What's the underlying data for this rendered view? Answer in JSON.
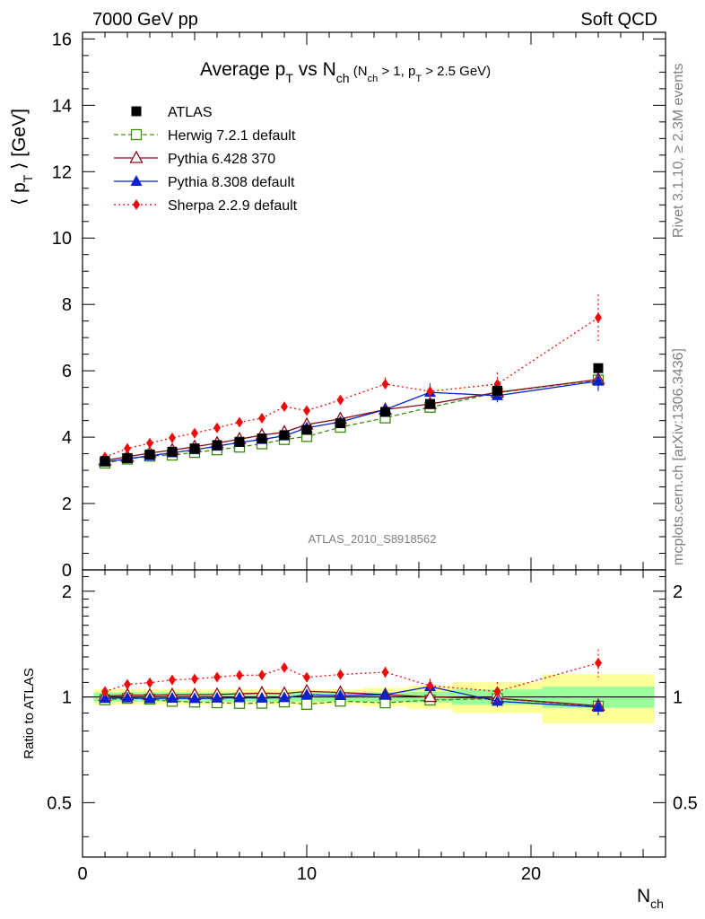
{
  "header": {
    "left": "7000 GeV pp",
    "right": "Soft QCD"
  },
  "side_text": {
    "top": "Rivet 3.1.10, ≥ 2.3M events",
    "bottom": "mcplots.cern.ch [arXiv:1306.3436]"
  },
  "watermark": "ATLAS_2010_S8918562",
  "chart_data": {
    "type": "line",
    "title": {
      "main": "Average p",
      "main_sub": "T",
      "vs": " vs N",
      "vs_sub": "ch",
      "cond_open": " (N",
      "cond_sub1": "ch",
      "cond_mid": " > 1, p",
      "cond_sub2": "T",
      "cond_close": " > 2.5 GeV)"
    },
    "ylabel": {
      "open": "⟨ p",
      "sub": "T",
      "close": " ⟩  [GeV]"
    },
    "ratio_ylabel": "Ratio to ATLAS",
    "xlabel": {
      "main": "N",
      "sub": "ch"
    },
    "xlim": [
      0,
      26
    ],
    "ylim": [
      0,
      16.2
    ],
    "ratio_ylim": [
      0.35,
      2.3
    ],
    "x_ticks": [
      0,
      10,
      20
    ],
    "y_ticks": [
      0,
      2,
      4,
      6,
      8,
      10,
      12,
      14,
      16
    ],
    "ratio_ticks": [
      0.5,
      1,
      2
    ],
    "legend_position": "top-left",
    "x": [
      1,
      2,
      3,
      4,
      5,
      6,
      7,
      8,
      9,
      10,
      11.5,
      13.5,
      15.5,
      18.5,
      23
    ],
    "x_edges": [
      0.5,
      1.5,
      2.5,
      3.5,
      4.5,
      5.5,
      6.5,
      7.5,
      8.5,
      9.5,
      10.5,
      12.5,
      14.5,
      16.5,
      20.5,
      25.5
    ],
    "band_inner": [
      0.03,
      0.03,
      0.03,
      0.03,
      0.03,
      0.03,
      0.03,
      0.03,
      0.03,
      0.03,
      0.03,
      0.03,
      0.035,
      0.05,
      0.07
    ],
    "band_outer": [
      0.05,
      0.05,
      0.05,
      0.05,
      0.05,
      0.05,
      0.05,
      0.05,
      0.05,
      0.05,
      0.05,
      0.06,
      0.075,
      0.1,
      0.16
    ],
    "data": {
      "name": "ATLAS",
      "values": [
        3.28,
        3.37,
        3.48,
        3.56,
        3.66,
        3.76,
        3.86,
        3.96,
        4.06,
        4.22,
        4.42,
        4.76,
        5.0,
        5.4,
        6.08
      ]
    },
    "series": [
      {
        "name": "Herwig 7.2.1 default",
        "color": "#3a8c0a",
        "dash": "5,3",
        "marker": "open-square",
        "values": [
          3.22,
          3.34,
          3.43,
          3.46,
          3.54,
          3.62,
          3.7,
          3.8,
          3.93,
          4.02,
          4.3,
          4.58,
          4.9,
          5.34,
          5.72
        ],
        "errors": [
          0.03,
          0.03,
          0.03,
          0.03,
          0.03,
          0.03,
          0.03,
          0.04,
          0.04,
          0.05,
          0.06,
          0.08,
          0.1,
          0.15,
          0.2
        ]
      },
      {
        "name": "Pythia 6.428 370",
        "color": "#8b0a1a",
        "dash": "",
        "marker": "open-triangle",
        "values": [
          3.3,
          3.41,
          3.52,
          3.61,
          3.71,
          3.82,
          3.94,
          4.06,
          4.15,
          4.38,
          4.55,
          4.83,
          5.0,
          5.35,
          5.74
        ],
        "errors": [
          0.03,
          0.03,
          0.03,
          0.03,
          0.03,
          0.03,
          0.03,
          0.04,
          0.04,
          0.05,
          0.06,
          0.08,
          0.1,
          0.15,
          0.2
        ]
      },
      {
        "name": "Pythia 8.308 default",
        "color": "#0a22cc",
        "dash": "",
        "marker": "filled-triangle",
        "values": [
          3.25,
          3.35,
          3.44,
          3.53,
          3.62,
          3.73,
          3.84,
          3.93,
          4.04,
          4.28,
          4.46,
          4.83,
          5.35,
          5.25,
          5.69
        ],
        "errors": [
          0.03,
          0.03,
          0.03,
          0.03,
          0.03,
          0.03,
          0.03,
          0.04,
          0.05,
          0.06,
          0.08,
          0.1,
          0.22,
          0.2,
          0.3
        ]
      },
      {
        "name": "Sherpa 2.2.9 default",
        "color": "#ee0a0a",
        "dash": "2,3",
        "marker": "filled-diamond",
        "values": [
          3.4,
          3.66,
          3.82,
          3.98,
          4.12,
          4.28,
          4.45,
          4.57,
          4.92,
          4.8,
          5.12,
          5.6,
          5.38,
          5.6,
          7.6
        ],
        "errors": [
          0.04,
          0.05,
          0.05,
          0.06,
          0.06,
          0.07,
          0.07,
          0.08,
          0.1,
          0.1,
          0.12,
          0.2,
          0.25,
          0.35,
          0.7
        ]
      }
    ]
  }
}
